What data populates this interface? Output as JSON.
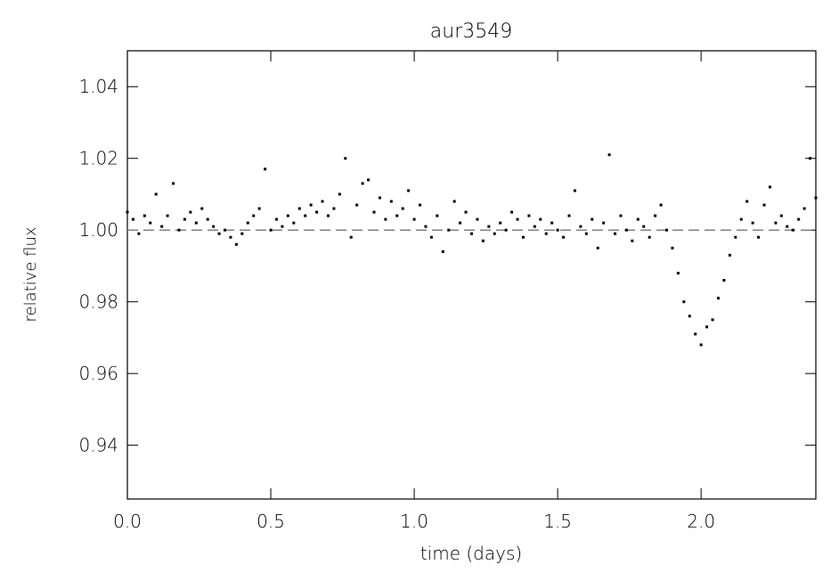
{
  "chart_data": {
    "type": "scatter",
    "title": "aur3549",
    "x_label": "time (days)",
    "y_label": "relative flux",
    "xlim": [
      0,
      2.4
    ],
    "ylim": [
      0.925,
      1.05
    ],
    "xticks": [
      {
        "value": 0,
        "label": "0.0"
      },
      0.5,
      {
        "value": 1,
        "label": "1.0"
      },
      1.5,
      {
        "value": 2,
        "label": "2.0"
      }
    ],
    "yticks": [
      0.94,
      0.96,
      0.98,
      {
        "value": 1,
        "label": "1.00"
      },
      1.02,
      1.04
    ],
    "reference_line": 1,
    "color": "#000000",
    "reference_color": "#808080",
    "series": [
      {
        "name": "aur3549",
        "color": "#000000",
        "x": [
          0,
          0.02,
          0.04,
          0.06,
          0.08,
          0.1,
          0.12,
          0.14,
          0.16,
          0.18,
          0.2,
          0.22,
          0.24,
          0.26,
          0.28,
          0.3,
          0.32,
          0.34,
          0.36,
          0.38,
          0.4,
          0.42,
          0.44,
          0.46,
          0.48,
          0.5,
          0.52,
          0.54,
          0.56,
          0.58,
          0.6,
          0.62,
          0.64,
          0.66,
          0.68,
          0.7,
          0.72,
          0.74,
          0.76,
          0.78,
          0.8,
          0.82,
          0.84,
          0.86,
          0.88,
          0.9,
          0.92,
          0.94,
          0.96,
          0.98,
          1,
          1.02,
          1.04,
          1.06,
          1.08,
          1.1,
          1.12,
          1.14,
          1.16,
          1.18,
          1.2,
          1.22,
          1.24,
          1.26,
          1.28,
          1.3,
          1.32,
          1.34,
          1.36,
          1.38,
          1.4,
          1.42,
          1.44,
          1.46,
          1.48,
          1.5,
          1.52,
          1.54,
          1.56,
          1.58,
          1.6,
          1.62,
          1.64,
          1.66,
          1.68,
          1.7,
          1.72,
          1.74,
          1.76,
          1.78,
          1.8,
          1.82,
          1.84,
          1.86,
          1.88,
          1.9,
          1.92,
          1.94,
          1.96,
          1.98,
          2,
          2.02,
          2.04,
          2.06,
          2.08,
          2.1,
          2.12,
          2.14,
          2.16,
          2.18,
          2.2,
          2.22,
          2.24,
          2.26,
          2.28,
          2.3,
          2.32,
          2.34,
          2.36,
          2.38,
          2.4
        ],
        "values": [
          1.005,
          1.003,
          0.999,
          1.004,
          1.002,
          1.01,
          1.001,
          1.004,
          1.013,
          1.0,
          1.003,
          1.005,
          1.002,
          1.006,
          1.003,
          1.001,
          0.999,
          1.0,
          0.998,
          0.996,
          0.999,
          1.002,
          1.004,
          1.006,
          1.017,
          1.0,
          1.003,
          1.001,
          1.004,
          1.002,
          1.006,
          1.004,
          1.007,
          1.005,
          1.008,
          1.004,
          1.006,
          1.01,
          1.02,
          0.998,
          1.007,
          1.013,
          1.014,
          1.005,
          1.009,
          1.003,
          1.008,
          1.004,
          1.006,
          1.011,
          1.003,
          1.007,
          1.001,
          0.998,
          1.004,
          0.994,
          1.0,
          1.008,
          1.002,
          1.005,
          0.999,
          1.003,
          0.997,
          1.001,
          0.999,
          1.002,
          1.0,
          1.005,
          1.003,
          0.998,
          1.004,
          1.001,
          1.003,
          0.999,
          1.002,
          1.0,
          0.998,
          1.004,
          1.011,
          1.001,
          0.999,
          1.003,
          0.995,
          1.002,
          1.021,
          0.999,
          1.004,
          1.0,
          0.997,
          1.003,
          1.001,
          0.998,
          1.004,
          1.007,
          1.0,
          0.995,
          0.988,
          0.98,
          0.976,
          0.971,
          0.968,
          0.973,
          0.975,
          0.981,
          0.986,
          0.993,
          0.998,
          1.003,
          1.008,
          1.002,
          0.998,
          1.007,
          1.012,
          1.002,
          1.004,
          1.001,
          1.0,
          1.003,
          1.006,
          1.02,
          1.009
        ]
      }
    ]
  }
}
